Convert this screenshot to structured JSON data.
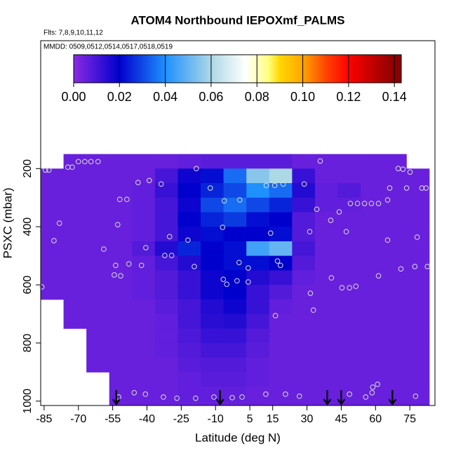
{
  "chart_data": {
    "type": "heatmap",
    "title": "ATOM4 Northbound IEPOXmf_PALMS",
    "subtitle": "Flts: 7,8,9,10,11,12",
    "annotation": "MMDD: 0509,0512,0514,0517,0518,0519",
    "xlabel": "Latitude (deg N)",
    "ylabel": "PSXC (mbar)",
    "xlim": [
      -86.5,
      86
    ],
    "ylim": [
      1015,
      -240
    ],
    "xticks": [
      -85,
      -70,
      -55,
      -40,
      -25,
      -10,
      5,
      15,
      30,
      45,
      60,
      75
    ],
    "yticks": [
      200,
      400,
      600,
      800,
      1000
    ],
    "x_edges": [
      -86.5,
      -76.5,
      -66.5,
      -56.5,
      -46.5,
      -36.5,
      -26.5,
      -16.5,
      -6.5,
      3.5,
      13.5,
      23.5,
      33.5,
      43.5,
      53.5,
      63.5,
      73.5,
      83.5
    ],
    "y_edges": [
      150,
      200,
      250,
      300,
      350,
      400,
      450,
      500,
      550,
      600,
      650,
      700,
      750,
      800,
      850,
      900,
      950,
      1000,
      1015
    ],
    "z": [
      [
        null,
        0.005,
        0.005,
        0.005,
        0.005,
        0.005,
        0.006,
        0.007,
        0.007,
        0.007,
        0.007,
        0.005,
        0.005,
        0.005,
        0.005,
        0.005,
        null
      ],
      [
        0.005,
        0.005,
        0.005,
        0.005,
        0.005,
        0.01,
        0.018,
        0.022,
        0.035,
        0.055,
        0.06,
        0.012,
        0.005,
        0.005,
        0.005,
        0.005,
        0.005
      ],
      [
        0.005,
        0.005,
        0.005,
        0.005,
        0.006,
        0.012,
        0.02,
        0.025,
        0.03,
        0.04,
        0.035,
        0.015,
        0.006,
        0.008,
        0.005,
        0.005,
        0.005
      ],
      [
        0.005,
        0.005,
        0.005,
        0.005,
        0.006,
        0.01,
        0.018,
        0.03,
        0.035,
        0.03,
        0.025,
        0.012,
        0.006,
        0.006,
        0.005,
        0.005,
        0.005
      ],
      [
        0.005,
        0.005,
        0.005,
        0.005,
        0.006,
        0.01,
        0.02,
        0.025,
        0.028,
        0.022,
        0.02,
        0.008,
        0.005,
        0.005,
        0.005,
        0.005,
        0.005
      ],
      [
        0.005,
        0.005,
        0.005,
        0.005,
        0.006,
        0.01,
        0.018,
        0.022,
        0.02,
        0.02,
        0.022,
        0.008,
        0.005,
        0.005,
        0.005,
        0.005,
        0.005
      ],
      [
        0.005,
        0.005,
        0.005,
        0.005,
        0.008,
        0.015,
        0.025,
        0.02,
        0.022,
        0.045,
        0.05,
        0.01,
        0.005,
        0.005,
        0.005,
        0.005,
        0.005
      ],
      [
        0.005,
        0.005,
        0.005,
        0.005,
        0.006,
        0.01,
        0.015,
        0.02,
        0.022,
        0.022,
        0.02,
        0.008,
        0.005,
        0.005,
        0.005,
        0.005,
        0.005
      ],
      [
        0.005,
        0.005,
        0.005,
        0.005,
        0.006,
        0.008,
        0.012,
        0.018,
        0.02,
        0.015,
        0.012,
        0.006,
        0.005,
        0.005,
        0.005,
        0.005,
        0.005
      ],
      [
        0.005,
        0.005,
        0.005,
        0.005,
        0.006,
        0.008,
        0.012,
        0.018,
        0.02,
        0.012,
        0.008,
        0.005,
        0.005,
        0.005,
        0.005,
        0.005,
        0.005
      ],
      [
        null,
        0.005,
        0.005,
        0.005,
        0.005,
        0.007,
        0.01,
        0.015,
        0.018,
        0.012,
        0.006,
        0.005,
        0.005,
        0.005,
        0.005,
        0.005,
        0.005
      ],
      [
        null,
        0.005,
        0.005,
        0.005,
        0.005,
        0.006,
        0.01,
        0.014,
        0.015,
        0.01,
        0.005,
        0.005,
        0.005,
        0.005,
        0.005,
        0.005,
        0.005
      ],
      [
        null,
        null,
        0.005,
        0.005,
        0.005,
        0.006,
        0.009,
        0.012,
        0.012,
        0.008,
        0.005,
        0.005,
        0.005,
        0.005,
        0.005,
        0.005,
        0.005
      ],
      [
        null,
        null,
        0.005,
        0.005,
        0.005,
        0.006,
        0.008,
        0.01,
        0.01,
        0.007,
        0.005,
        0.005,
        0.005,
        0.005,
        0.005,
        0.005,
        0.005
      ],
      [
        null,
        null,
        0.005,
        0.005,
        0.005,
        0.005,
        0.007,
        0.008,
        0.008,
        0.006,
        0.005,
        0.005,
        0.005,
        0.005,
        0.005,
        0.005,
        0.005
      ],
      [
        null,
        null,
        null,
        0.005,
        0.005,
        0.005,
        0.006,
        0.007,
        0.007,
        0.006,
        0.005,
        0.005,
        0.005,
        0.005,
        0.005,
        0.005,
        0.005
      ],
      [
        null,
        null,
        null,
        0.005,
        0.005,
        0.005,
        0.006,
        0.006,
        0.006,
        0.005,
        0.005,
        0.005,
        0.005,
        0.005,
        0.005,
        0.005,
        0.005
      ],
      [
        null,
        null,
        null,
        0.005,
        0.005,
        0.005,
        0.005,
        0.005,
        0.005,
        0.005,
        0.005,
        0.005,
        0.005,
        0.005,
        0.005,
        0.005,
        0.005
      ]
    ],
    "colorscale": [
      [
        0,
        "#8a2be2"
      ],
      [
        0.02,
        "#0000cd"
      ],
      [
        0.04,
        "#1e90ff"
      ],
      [
        0.06,
        "#add8e6"
      ],
      [
        0.075,
        "#ffffff"
      ],
      [
        0.085,
        "#ffff80"
      ],
      [
        0.09,
        "#ffd700"
      ],
      [
        0.1,
        "#ffa500"
      ],
      [
        0.11,
        "#ff4500"
      ],
      [
        0.12,
        "#ff0000"
      ],
      [
        0.14,
        "#8b0000"
      ]
    ],
    "clim": [
      0,
      0.143
    ],
    "cticks": [
      {
        "value": 0,
        "label": "0.00"
      },
      {
        "value": 0.02,
        "label": "0.02"
      },
      {
        "value": 0.04,
        "label": "0.04"
      },
      {
        "value": 0.06,
        "label": "0.06"
      },
      {
        "value": 0.08,
        "label": "0.08"
      },
      {
        "value": 0.1,
        "label": "0.10"
      },
      {
        "value": 0.12,
        "label": "0.12"
      },
      {
        "value": 0.14,
        "label": "0.14"
      }
    ],
    "points_x": [
      -84.4,
      -82.9,
      -74.6,
      -72.7,
      -70,
      -67.2,
      -64.5,
      -61.4,
      35.8,
      -43.9,
      -39,
      -33.8,
      -51.9,
      -48.8,
      -78.3,
      -52.8,
      -80.7,
      -58.9,
      -40.5,
      -30.1,
      -22.1,
      -18.4,
      -12.3,
      -6.2,
      0.6,
      -6.9,
      14.1,
      15.9,
      12.2,
      19.6,
      28.8,
      31.2,
      34.3,
      40.4,
      44.1,
      47.2,
      49,
      52.1,
      55.2,
      58.2,
      61.3,
      66.2,
      65.3,
      73.6,
      69.9,
      72,
      75.1,
      80.3,
      82.1,
      78.2,
      65.3,
      61.3,
      71.1,
      77.2,
      82.7,
      40.7,
      45.3,
      48.6,
      51.4,
      31.5,
      32.8,
      16.2,
      0.3,
      4.3,
      -6.6,
      -5.1,
      -0.6,
      4.3,
      17.1,
      18.4,
      -19.3,
      -29.2,
      -32.2,
      -42.4,
      -47.9,
      -53.7,
      -54.3,
      -51.5,
      -86,
      -45.6,
      -40.7,
      -32.8,
      -26.9,
      -18.7,
      -10.7,
      -2.7,
      1.6,
      12,
      20.6,
      26.7,
      48.6,
      55.7,
      58.8,
      60.9,
      58.5,
      77.5,
      -52.4
    ],
    "points_y": [
      205,
      205,
      195,
      195,
      176,
      176,
      176,
      176,
      174,
      248,
      241,
      253,
      306,
      306,
      388,
      393,
      448,
      477,
      472,
      434,
      446,
      200,
      267,
      311,
      308,
      402,
      422,
      258,
      258,
      253,
      253,
      417,
      340,
      378,
      349,
      417,
      320,
      320,
      320,
      320,
      320,
      267,
      308,
      267,
      200,
      202,
      212,
      267,
      267,
      436,
      446,
      569,
      545,
      537,
      537,
      576,
      610,
      610,
      605,
      629,
      687,
      706,
      523,
      542,
      581,
      598,
      586,
      590,
      518,
      533,
      537,
      499,
      499,
      533,
      528,
      533,
      566,
      569,
      607,
      971,
      976,
      986,
      990,
      990,
      986,
      988,
      986,
      976,
      976,
      983,
      976,
      986,
      952,
      942,
      971,
      983,
      986
    ],
    "arrows_x": [
      -53.4,
      -8,
      38.9,
      45,
      67.4
    ]
  }
}
